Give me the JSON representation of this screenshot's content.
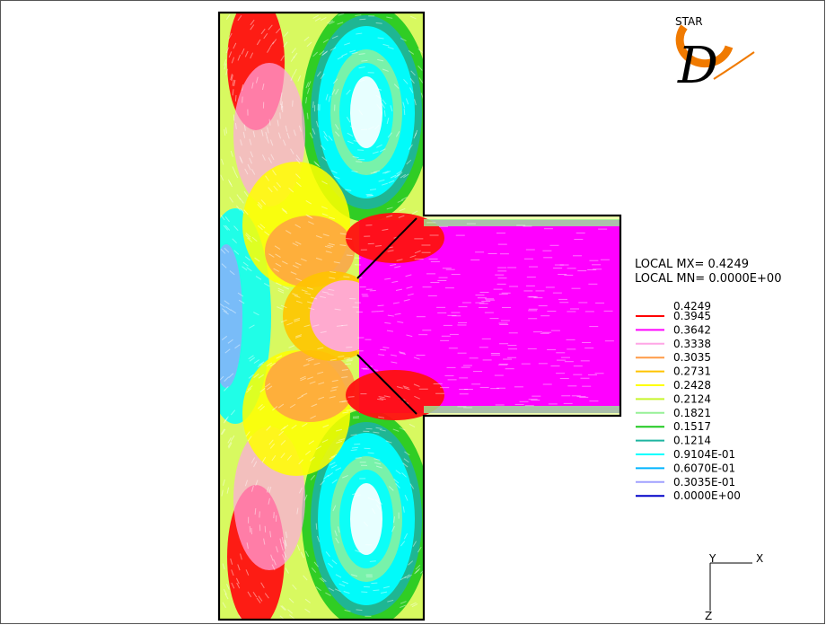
{
  "logo": {
    "brand": "STAR",
    "letter": "D"
  },
  "legend": {
    "max_label": "LOCAL MX= 0.4249",
    "min_label": "LOCAL MN= 0.0000E+00",
    "top_value": "0.4249",
    "entries": [
      {
        "value": "0.3945",
        "color": "#ff0000"
      },
      {
        "value": "0.3642",
        "color": "#ff00ff"
      },
      {
        "value": "0.3338",
        "color": "#ffa6e6"
      },
      {
        "value": "0.3035",
        "color": "#ff9b47"
      },
      {
        "value": "0.2731",
        "color": "#ffc400"
      },
      {
        "value": "0.2428",
        "color": "#ffff00"
      },
      {
        "value": "0.2124",
        "color": "#c6f52c"
      },
      {
        "value": "0.1821",
        "color": "#96f096"
      },
      {
        "value": "0.1517",
        "color": "#1ec81e"
      },
      {
        "value": "0.1214",
        "color": "#1eb4a0"
      },
      {
        "value": "0.9104E-01",
        "color": "#00ffff"
      },
      {
        "value": "0.6070E-01",
        "color": "#00b4ff"
      },
      {
        "value": "0.3035E-01",
        "color": "#a0a0ff"
      },
      {
        "value": "0.0000E+00",
        "color": "#0000c8"
      }
    ]
  },
  "axes": {
    "y": "Y",
    "x": "X",
    "z": "Z"
  }
}
